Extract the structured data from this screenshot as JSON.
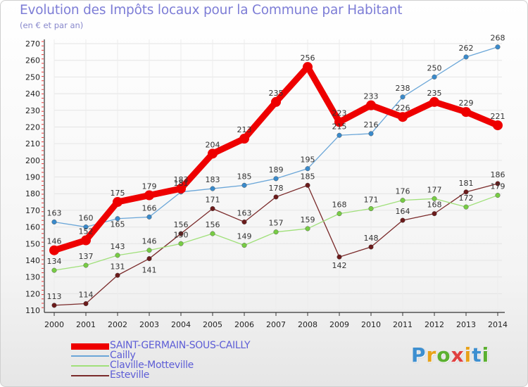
{
  "title": "Evolution des Impôts locaux pour la Commune par Habitant",
  "subtitle": "(en € et par an)",
  "logo": {
    "letters": [
      "P",
      "r",
      "o",
      "x",
      "i",
      "t",
      "i"
    ],
    "colors": [
      "#3d8fd0",
      "#e8a21a",
      "#5bb030",
      "#e04040",
      "#e8a21a",
      "#3d8fd0",
      "#5bb030"
    ]
  },
  "chart_data": {
    "type": "line",
    "title": "Evolution des Impôts locaux pour la Commune par Habitant",
    "ylabel": "(en € et par an)",
    "xlabel": "",
    "ylim": [
      110,
      270
    ],
    "yticks": [
      110,
      120,
      130,
      140,
      150,
      160,
      170,
      180,
      190,
      200,
      210,
      220,
      230,
      240,
      250,
      260,
      270
    ],
    "grid": true,
    "x": [
      "2000",
      "2001",
      "2002",
      "2003",
      "2004",
      "2005",
      "2006",
      "2007",
      "2008",
      "2009",
      "2010",
      "2011",
      "2012",
      "2013",
      "2014"
    ],
    "series": [
      {
        "name": "Esteville",
        "color": "#7a2a2a",
        "marker": "#6b1b1b",
        "values": [
          113,
          114,
          131,
          141,
          156,
          171,
          163,
          178,
          185,
          142,
          148,
          164,
          168,
          181,
          186
        ]
      },
      {
        "name": "Claville-Motteville",
        "color": "#a0e07a",
        "marker": "#77cc44",
        "values": [
          134,
          137,
          143,
          146,
          150,
          156,
          149,
          157,
          159,
          168,
          171,
          176,
          177,
          172,
          179
        ]
      },
      {
        "name": "Cailly",
        "color": "#6aa6d8",
        "marker": "#3a8acb",
        "values": [
          163,
          160,
          165,
          166,
          181,
          183,
          185,
          189,
          195,
          215,
          216,
          238,
          250,
          262,
          268
        ]
      },
      {
        "name": "SAINT-GERMAIN-SOUS-CAILLY",
        "color": "#ee0000",
        "marker": "#ee0000",
        "values": [
          146,
          152,
          175,
          179,
          183,
          204,
          213,
          235,
          256,
          223,
          233,
          226,
          235,
          229,
          221
        ]
      }
    ],
    "legend": [
      {
        "label": "SAINT-GERMAIN-SOUS-CAILLY",
        "color": "#ee0000"
      },
      {
        "label": "Cailly",
        "color": "#6aa6d8"
      },
      {
        "label": "Claville-Motteville",
        "color": "#a0e07a"
      },
      {
        "label": "Esteville",
        "color": "#7a2a2a"
      }
    ],
    "legend_position": "bottom-left"
  }
}
